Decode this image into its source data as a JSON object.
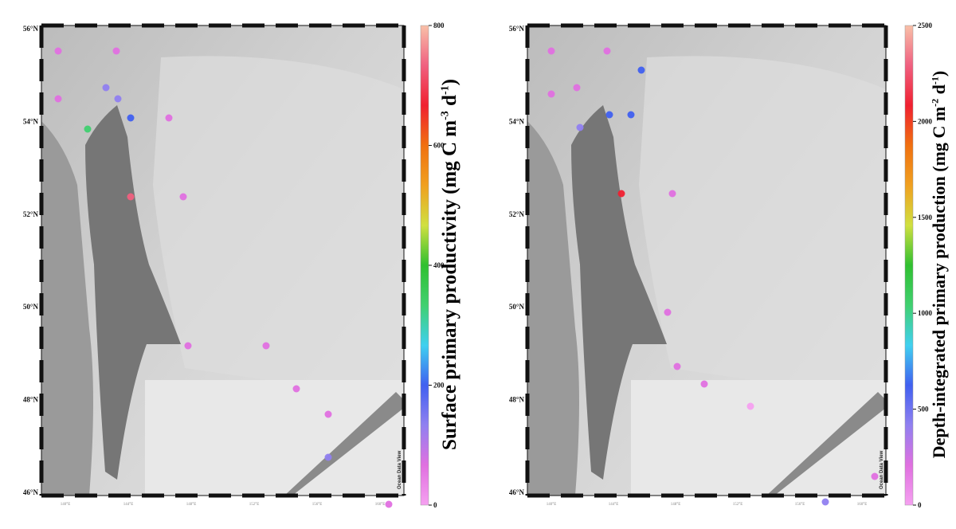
{
  "left_map": {
    "lat_labels": [
      "56°N",
      "54°N",
      "52°N",
      "50°N",
      "48°N",
      "46°N"
    ],
    "lon_labels": [
      "140°E",
      "144°E",
      "148°E",
      "152°E",
      "156°E",
      "160°E"
    ],
    "credit": "Ocean Data View",
    "colorbar": {
      "ticks": [
        "800",
        "600",
        "400",
        "200",
        "0"
      ],
      "title_main": "Surface primary productivity (mg C m",
      "title_sup1": "-3",
      "title_mid": " d",
      "title_sup2": "-1",
      "title_end": ")",
      "range": [
        0,
        800
      ]
    },
    "stations": [
      {
        "value": 95
      },
      {
        "value": 60
      },
      {
        "value": 120
      },
      {
        "value": 330
      },
      {
        "value": 60
      },
      {
        "value": 120
      },
      {
        "value": 200
      },
      {
        "value": 35
      },
      {
        "value": 750
      },
      {
        "value": 60
      },
      {
        "value": 75
      },
      {
        "value": 50
      },
      {
        "value": 60
      },
      {
        "value": 100
      },
      {
        "value": 60
      },
      {
        "value": 80
      }
    ]
  },
  "right_map": {
    "lat_labels": [
      "56°N",
      "54°N",
      "52°N",
      "50°N",
      "48°N",
      "46°N"
    ],
    "lon_labels": [
      "140°E",
      "144°E",
      "148°E",
      "152°E",
      "156°E",
      "160°E"
    ],
    "credit": "Ocean Data View",
    "colorbar": {
      "ticks": [
        "2500",
        "2000",
        "1500",
        "1000",
        "500",
        "0"
      ],
      "title_main": "Depth-integrated primary production (mg C m",
      "title_sup1": "-2",
      "title_mid": " d",
      "title_sup2": "-1",
      "title_end": ")",
      "range": [
        0,
        2500
      ]
    },
    "stations": [
      {
        "value": 200
      },
      {
        "value": 200
      },
      {
        "value": 280
      },
      {
        "value": 600
      },
      {
        "value": 250
      },
      {
        "value": 700
      },
      {
        "value": 350
      },
      {
        "value": 550
      },
      {
        "value": 2100
      },
      {
        "value": 200
      },
      {
        "value": 250
      },
      {
        "value": 150
      },
      {
        "value": 200
      },
      {
        "value": 500
      },
      {
        "value": 100
      },
      {
        "value": 200
      }
    ]
  },
  "colors": {
    "colormap": [
      "#f5a0f0",
      "#e070e0",
      "#9080f0",
      "#4060f0",
      "#40d0f0",
      "#40d070",
      "#30c030",
      "#d0e040",
      "#f0a020",
      "#f07010",
      "#f02030",
      "#f06080",
      "#f8c0a8"
    ],
    "ocean_dark": "#bcbcbc",
    "ocean_light": "#e6e6e6",
    "land": "#8a8a8a",
    "land_dark": "#767676"
  }
}
